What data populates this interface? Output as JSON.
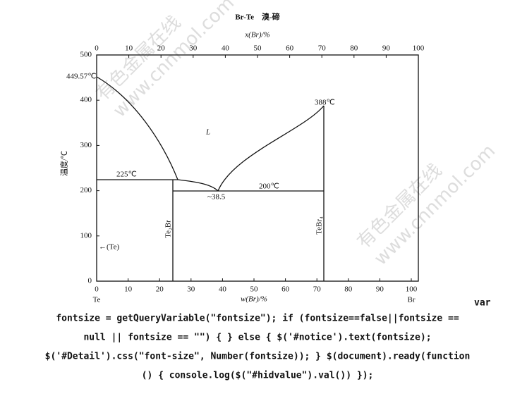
{
  "title": "Br-Te　溴-碲",
  "top_axis": {
    "label": "x(Br)/%",
    "ticks": [
      "0",
      "10",
      "20",
      "30",
      "40",
      "50",
      "60",
      "70",
      "80",
      "90",
      "100"
    ]
  },
  "bottom_axis": {
    "label": "w(Br)/%",
    "ticks": [
      "0",
      "10",
      "20",
      "30",
      "40",
      "50",
      "60",
      "70",
      "80",
      "90",
      "100"
    ],
    "left_end": "Te",
    "right_end": "Br"
  },
  "y_axis": {
    "label": "温度/℃",
    "ticks": [
      "0",
      "100",
      "200",
      "300",
      "400",
      "500"
    ]
  },
  "annotations": {
    "te_melt": "449.57℃",
    "tebr4_melt": "388℃",
    "liquid": "L",
    "eutectic1": "225℃",
    "eutectic2": "200℃",
    "eutectic_comp": "~38.5",
    "te2br": "Te₂Br",
    "tebr4": "TeBr₄",
    "te_phase": "←(Te)"
  },
  "watermark": [
    "有色金属在线",
    "www.cnnmol.com"
  ],
  "code_lines": [
    "var",
    "fontsize = getQueryVariable(\"fontsize\"); if (fontsize==false||fontsize ==",
    "null || fontsize == \"\") { } else { $('#notice').text(fontsize);",
    "$('#Detail').css(\"font-size\", Number(fontsize)); } $(document).ready(function",
    "() { console.log($(\"#hidvalue\").val()) });"
  ]
}
